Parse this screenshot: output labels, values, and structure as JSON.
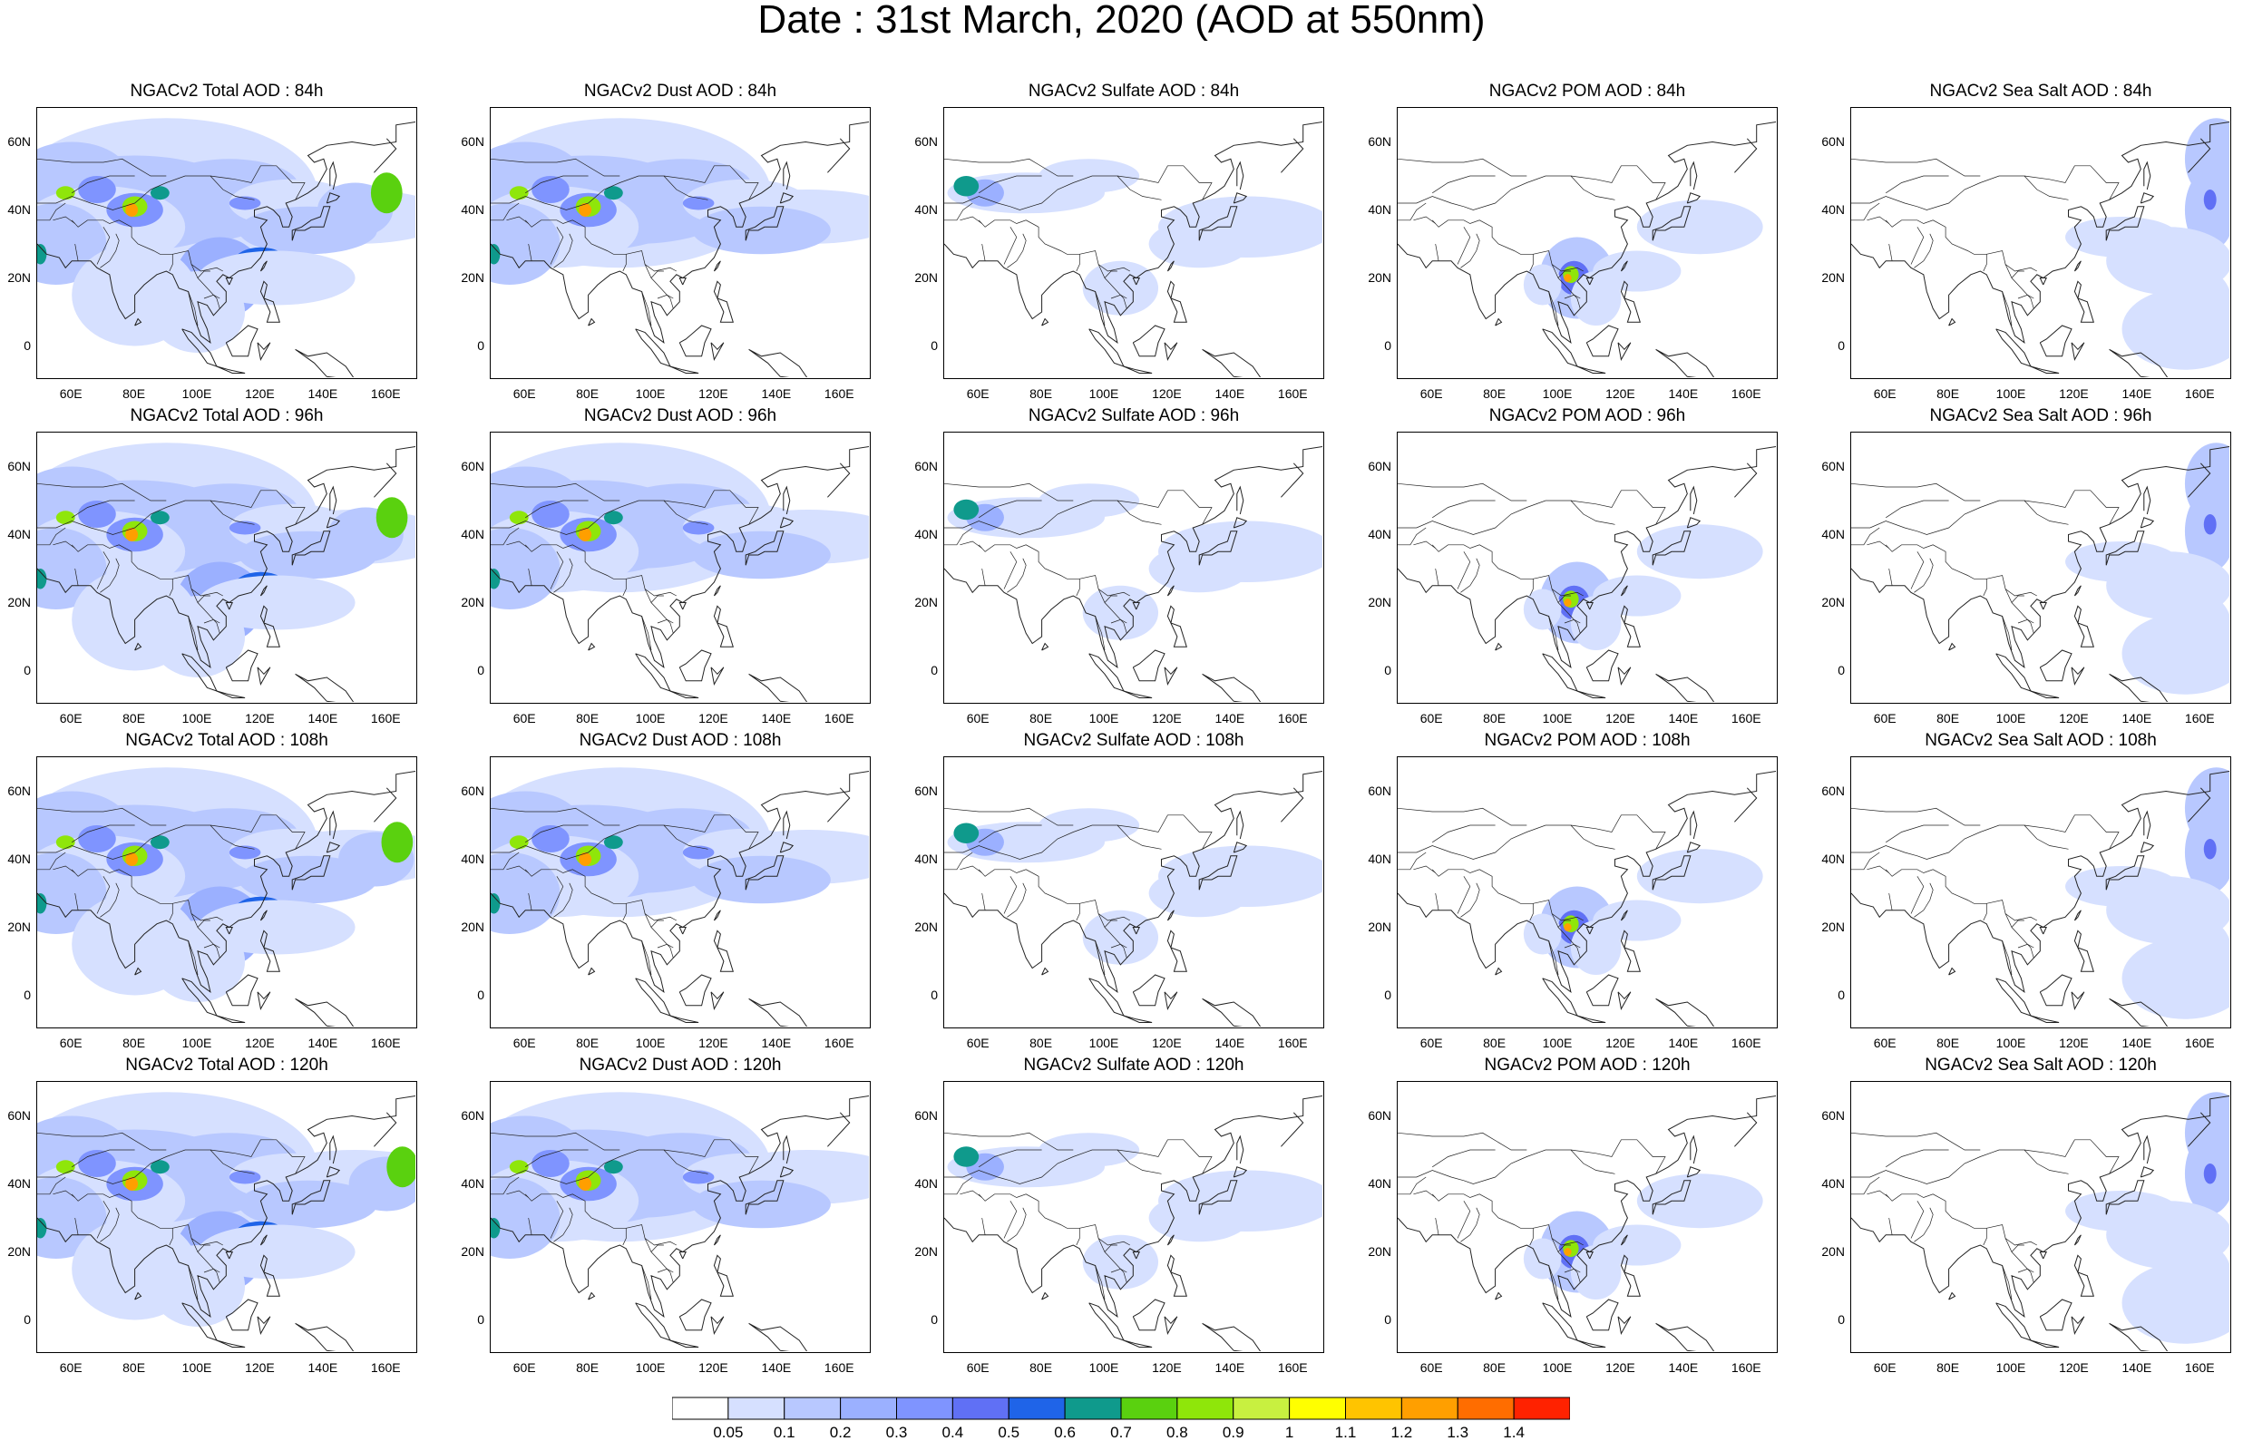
{
  "title": "Date : 31st March, 2020 (AOD at 550nm)",
  "colors": {
    "levels": [
      "#ffffff",
      "#d6e0ff",
      "#b8c8ff",
      "#9bb0ff",
      "#7f94ff",
      "#6070f5",
      "#1f64e8",
      "#0f9a8c",
      "#5ad10f",
      "#8fe60a",
      "#c8f040",
      "#ffff00",
      "#ffc400",
      "#ff9f00",
      "#ff6d00",
      "#ff2200"
    ],
    "coastline": "#222222"
  },
  "colorbar": {
    "labels": [
      "0.05",
      "0.1",
      "0.2",
      "0.3",
      "0.4",
      "0.5",
      "0.6",
      "0.7",
      "0.8",
      "0.9",
      "1",
      "1.1",
      "1.2",
      "1.3",
      "1.4"
    ]
  },
  "axes": {
    "lat_labels": [
      "60N",
      "40N",
      "20N",
      "0"
    ],
    "lon_labels": [
      "60E",
      "80E",
      "100E",
      "120E",
      "140E",
      "160E"
    ]
  },
  "rows": [
    {
      "panels": [
        {
          "title": "NGACv2 Total AOD : 84h",
          "species": "total",
          "hour": 84
        },
        {
          "title": "NGACv2 Dust AOD : 84h",
          "species": "dust",
          "hour": 84
        },
        {
          "title": "NGACv2 Sulfate AOD : 84h",
          "species": "sulfate",
          "hour": 84
        },
        {
          "title": "NGACv2 POM AOD : 84h",
          "species": "pom",
          "hour": 84
        },
        {
          "title": "NGACv2 Sea Salt AOD : 84h",
          "species": "seasalt",
          "hour": 84
        }
      ]
    },
    {
      "panels": [
        {
          "title": "NGACv2 Total AOD : 96h",
          "species": "total",
          "hour": 96
        },
        {
          "title": "NGACv2 Dust AOD : 96h",
          "species": "dust",
          "hour": 96
        },
        {
          "title": "NGACv2 Sulfate AOD : 96h",
          "species": "sulfate",
          "hour": 96
        },
        {
          "title": "NGACv2 POM AOD : 96h",
          "species": "pom",
          "hour": 96
        },
        {
          "title": "NGACv2 Sea Salt AOD : 96h",
          "species": "seasalt",
          "hour": 96
        }
      ]
    },
    {
      "panels": [
        {
          "title": "NGACv2 Total AOD : 108h",
          "species": "total",
          "hour": 108
        },
        {
          "title": "NGACv2 Dust AOD : 108h",
          "species": "dust",
          "hour": 108
        },
        {
          "title": "NGACv2 Sulfate AOD : 108h",
          "species": "sulfate",
          "hour": 108
        },
        {
          "title": "NGACv2 POM AOD : 108h",
          "species": "pom",
          "hour": 108
        },
        {
          "title": "NGACv2 Sea Salt AOD : 108h",
          "species": "seasalt",
          "hour": 108
        }
      ]
    },
    {
      "panels": [
        {
          "title": "NGACv2 Total AOD : 120h",
          "species": "total",
          "hour": 120
        },
        {
          "title": "NGACv2 Dust AOD : 120h",
          "species": "dust",
          "hour": 120
        },
        {
          "title": "NGACv2 Sulfate AOD : 120h",
          "species": "sulfate",
          "hour": 120
        },
        {
          "title": "NGACv2 POM AOD : 120h",
          "species": "pom",
          "hour": 120
        },
        {
          "title": "NGACv2 Sea Salt  AOD : 120h",
          "species": "seasalt",
          "hour": 120
        }
      ]
    }
  ]
}
